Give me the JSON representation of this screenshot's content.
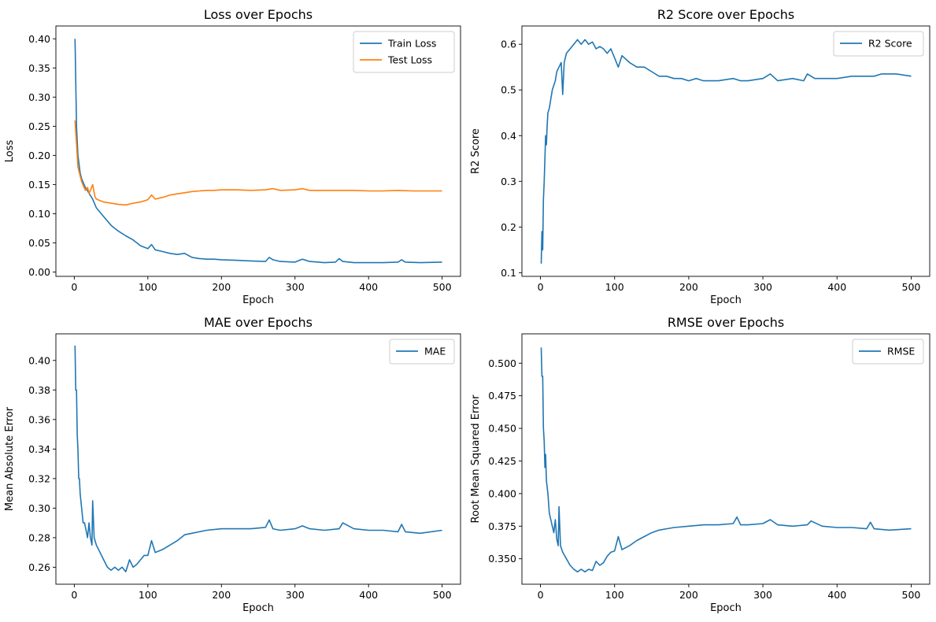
{
  "chart_data": [
    {
      "type": "line",
      "title": "Loss over Epochs",
      "xlabel": "Epoch",
      "ylabel": "Loss",
      "xlim": [
        -25,
        525
      ],
      "ylim": [
        -0.0075,
        0.422
      ],
      "xticks": [
        0,
        100,
        200,
        300,
        400,
        500
      ],
      "yticks": [
        0.0,
        0.05,
        0.1,
        0.15,
        0.2,
        0.25,
        0.3,
        0.35,
        0.4
      ],
      "tick_decimals": 2,
      "grid": false,
      "legend": "top-right",
      "series": [
        {
          "name": "Train Loss",
          "color": "#1f77b4",
          "x": [
            1,
            3,
            5,
            8,
            10,
            15,
            20,
            25,
            30,
            40,
            50,
            60,
            70,
            80,
            90,
            100,
            105,
            110,
            120,
            130,
            140,
            150,
            160,
            170,
            180,
            190,
            200,
            220,
            240,
            260,
            265,
            270,
            280,
            300,
            310,
            320,
            340,
            355,
            360,
            365,
            380,
            400,
            420,
            440,
            445,
            450,
            470,
            500
          ],
          "values": [
            0.4,
            0.25,
            0.2,
            0.17,
            0.16,
            0.145,
            0.135,
            0.125,
            0.11,
            0.095,
            0.08,
            0.07,
            0.062,
            0.055,
            0.045,
            0.04,
            0.047,
            0.038,
            0.035,
            0.032,
            0.03,
            0.032,
            0.025,
            0.023,
            0.022,
            0.022,
            0.021,
            0.02,
            0.019,
            0.018,
            0.025,
            0.021,
            0.018,
            0.017,
            0.022,
            0.018,
            0.016,
            0.017,
            0.023,
            0.018,
            0.016,
            0.016,
            0.016,
            0.017,
            0.021,
            0.017,
            0.016,
            0.017
          ]
        },
        {
          "name": "Test Loss",
          "color": "#ff7f0e",
          "x": [
            1,
            3,
            5,
            8,
            10,
            15,
            18,
            20,
            22,
            25,
            28,
            30,
            40,
            50,
            60,
            70,
            80,
            90,
            100,
            105,
            110,
            120,
            130,
            140,
            150,
            160,
            170,
            180,
            190,
            200,
            220,
            240,
            260,
            270,
            280,
            300,
            310,
            320,
            340,
            360,
            380,
            400,
            420,
            440,
            460,
            480,
            500
          ],
          "values": [
            0.26,
            0.22,
            0.18,
            0.165,
            0.155,
            0.14,
            0.145,
            0.135,
            0.14,
            0.15,
            0.13,
            0.125,
            0.12,
            0.118,
            0.116,
            0.115,
            0.118,
            0.12,
            0.124,
            0.132,
            0.125,
            0.128,
            0.132,
            0.134,
            0.136,
            0.138,
            0.139,
            0.14,
            0.14,
            0.141,
            0.141,
            0.14,
            0.141,
            0.143,
            0.14,
            0.141,
            0.143,
            0.14,
            0.14,
            0.14,
            0.14,
            0.139,
            0.139,
            0.14,
            0.139,
            0.139,
            0.139
          ]
        }
      ]
    },
    {
      "type": "line",
      "title": "R2 Score over Epochs",
      "xlabel": "Epoch",
      "ylabel": "R2 Score",
      "xlim": [
        -25,
        525
      ],
      "ylim": [
        0.092,
        0.64
      ],
      "xticks": [
        0,
        100,
        200,
        300,
        400,
        500
      ],
      "yticks": [
        0.1,
        0.2,
        0.3,
        0.4,
        0.5,
        0.6
      ],
      "tick_decimals": 1,
      "grid": false,
      "legend": "top-right",
      "series": [
        {
          "name": "R2 Score",
          "color": "#1f77b4",
          "x": [
            1,
            2,
            3,
            4,
            5,
            6,
            7,
            8,
            9,
            10,
            12,
            14,
            16,
            18,
            20,
            22,
            25,
            28,
            30,
            32,
            35,
            40,
            45,
            50,
            55,
            60,
            65,
            70,
            75,
            80,
            85,
            90,
            95,
            100,
            105,
            110,
            120,
            130,
            140,
            150,
            160,
            170,
            180,
            190,
            200,
            210,
            220,
            240,
            260,
            270,
            280,
            300,
            310,
            320,
            340,
            355,
            360,
            370,
            380,
            400,
            420,
            440,
            450,
            460,
            480,
            500
          ],
          "values": [
            0.12,
            0.19,
            0.15,
            0.26,
            0.3,
            0.35,
            0.4,
            0.38,
            0.42,
            0.45,
            0.46,
            0.48,
            0.5,
            0.51,
            0.52,
            0.54,
            0.55,
            0.56,
            0.49,
            0.56,
            0.58,
            0.59,
            0.6,
            0.61,
            0.6,
            0.61,
            0.6,
            0.605,
            0.59,
            0.595,
            0.59,
            0.58,
            0.59,
            0.57,
            0.55,
            0.575,
            0.56,
            0.55,
            0.55,
            0.54,
            0.53,
            0.53,
            0.525,
            0.525,
            0.52,
            0.525,
            0.52,
            0.52,
            0.525,
            0.52,
            0.52,
            0.525,
            0.535,
            0.52,
            0.525,
            0.52,
            0.535,
            0.525,
            0.525,
            0.525,
            0.53,
            0.53,
            0.53,
            0.535,
            0.535,
            0.53
          ]
        }
      ]
    },
    {
      "type": "line",
      "title": "MAE over Epochs",
      "xlabel": "Epoch",
      "ylabel": "Mean Absolute Error",
      "xlim": [
        -25,
        525
      ],
      "ylim": [
        0.2485,
        0.418
      ],
      "xticks": [
        0,
        100,
        200,
        300,
        400,
        500
      ],
      "yticks": [
        0.26,
        0.28,
        0.3,
        0.32,
        0.34,
        0.36,
        0.38,
        0.4
      ],
      "tick_decimals": 2,
      "grid": false,
      "legend": "top-right",
      "series": [
        {
          "name": "MAE",
          "color": "#1f77b4",
          "x": [
            1,
            2,
            3,
            4,
            5,
            6,
            7,
            8,
            10,
            12,
            14,
            16,
            18,
            20,
            22,
            24,
            25,
            27,
            30,
            35,
            40,
            45,
            50,
            55,
            60,
            65,
            70,
            75,
            80,
            85,
            90,
            95,
            100,
            105,
            110,
            120,
            130,
            140,
            150,
            160,
            170,
            180,
            200,
            220,
            240,
            260,
            265,
            270,
            280,
            300,
            310,
            320,
            340,
            360,
            365,
            380,
            400,
            420,
            440,
            445,
            450,
            470,
            500
          ],
          "values": [
            0.41,
            0.38,
            0.38,
            0.35,
            0.34,
            0.32,
            0.32,
            0.31,
            0.3,
            0.29,
            0.29,
            0.285,
            0.28,
            0.29,
            0.28,
            0.275,
            0.305,
            0.28,
            0.275,
            0.27,
            0.265,
            0.26,
            0.258,
            0.26,
            0.258,
            0.26,
            0.257,
            0.265,
            0.26,
            0.262,
            0.265,
            0.268,
            0.268,
            0.278,
            0.27,
            0.272,
            0.275,
            0.278,
            0.282,
            0.283,
            0.284,
            0.285,
            0.286,
            0.286,
            0.286,
            0.287,
            0.292,
            0.286,
            0.285,
            0.286,
            0.288,
            0.286,
            0.285,
            0.286,
            0.29,
            0.286,
            0.285,
            0.285,
            0.284,
            0.289,
            0.284,
            0.283,
            0.285
          ]
        }
      ]
    },
    {
      "type": "line",
      "title": "RMSE over Epochs",
      "xlabel": "Epoch",
      "ylabel": "Root Mean Squared Error",
      "xlim": [
        -25,
        525
      ],
      "ylim": [
        0.3305,
        0.5225
      ],
      "xticks": [
        0,
        100,
        200,
        300,
        400,
        500
      ],
      "yticks": [
        0.35,
        0.375,
        0.4,
        0.425,
        0.45,
        0.475,
        0.5
      ],
      "tick_decimals": 3,
      "grid": false,
      "legend": "top-right",
      "series": [
        {
          "name": "RMSE",
          "color": "#1f77b4",
          "x": [
            1,
            2,
            3,
            4,
            5,
            6,
            7,
            8,
            10,
            12,
            14,
            16,
            18,
            20,
            22,
            24,
            25,
            27,
            30,
            35,
            40,
            45,
            50,
            55,
            60,
            65,
            70,
            75,
            80,
            85,
            90,
            95,
            100,
            105,
            110,
            120,
            130,
            140,
            150,
            160,
            170,
            180,
            200,
            220,
            240,
            260,
            265,
            270,
            280,
            300,
            310,
            320,
            340,
            360,
            365,
            380,
            400,
            420,
            440,
            445,
            450,
            470,
            500
          ],
          "values": [
            0.512,
            0.49,
            0.49,
            0.45,
            0.44,
            0.42,
            0.43,
            0.41,
            0.4,
            0.385,
            0.38,
            0.375,
            0.37,
            0.38,
            0.365,
            0.36,
            0.39,
            0.36,
            0.355,
            0.35,
            0.345,
            0.342,
            0.34,
            0.342,
            0.34,
            0.342,
            0.341,
            0.348,
            0.345,
            0.347,
            0.352,
            0.355,
            0.356,
            0.367,
            0.357,
            0.36,
            0.364,
            0.367,
            0.37,
            0.372,
            0.373,
            0.374,
            0.375,
            0.376,
            0.376,
            0.377,
            0.382,
            0.376,
            0.376,
            0.377,
            0.38,
            0.376,
            0.375,
            0.376,
            0.379,
            0.375,
            0.374,
            0.374,
            0.373,
            0.378,
            0.373,
            0.372,
            0.373
          ]
        }
      ]
    }
  ]
}
